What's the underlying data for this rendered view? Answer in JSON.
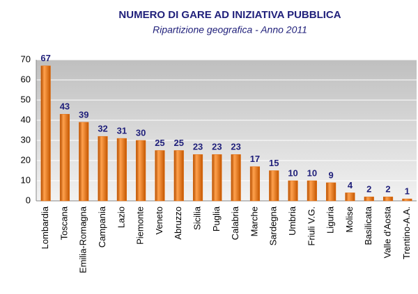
{
  "chart_data": {
    "type": "bar",
    "title": "NUMERO DI GARE AD INIZIATIVA  PUBBLICA",
    "subtitle": "Ripartizione geografica - Anno 2011",
    "categories": [
      "Lombardia",
      "Toscana",
      "Emilia-Romagna",
      "Campania",
      "Lazio",
      "Piemonte",
      "Veneto",
      "Abruzzo",
      "Sicilia",
      "Puglia",
      "Calabria",
      "Marche",
      "Sardegna",
      "Umbria",
      "Friuli V.G.",
      "Liguria",
      "Molise",
      "Basilicata",
      "Valle d'Aosta",
      "Trentino-A.A."
    ],
    "values": [
      67,
      43,
      39,
      32,
      31,
      30,
      25,
      25,
      23,
      23,
      23,
      17,
      15,
      10,
      10,
      9,
      4,
      2,
      2,
      1
    ],
    "color": "#e46c0a",
    "ylim": [
      0,
      70
    ],
    "yticks": [
      0,
      10,
      20,
      30,
      40,
      50,
      60,
      70
    ],
    "grid": true
  }
}
